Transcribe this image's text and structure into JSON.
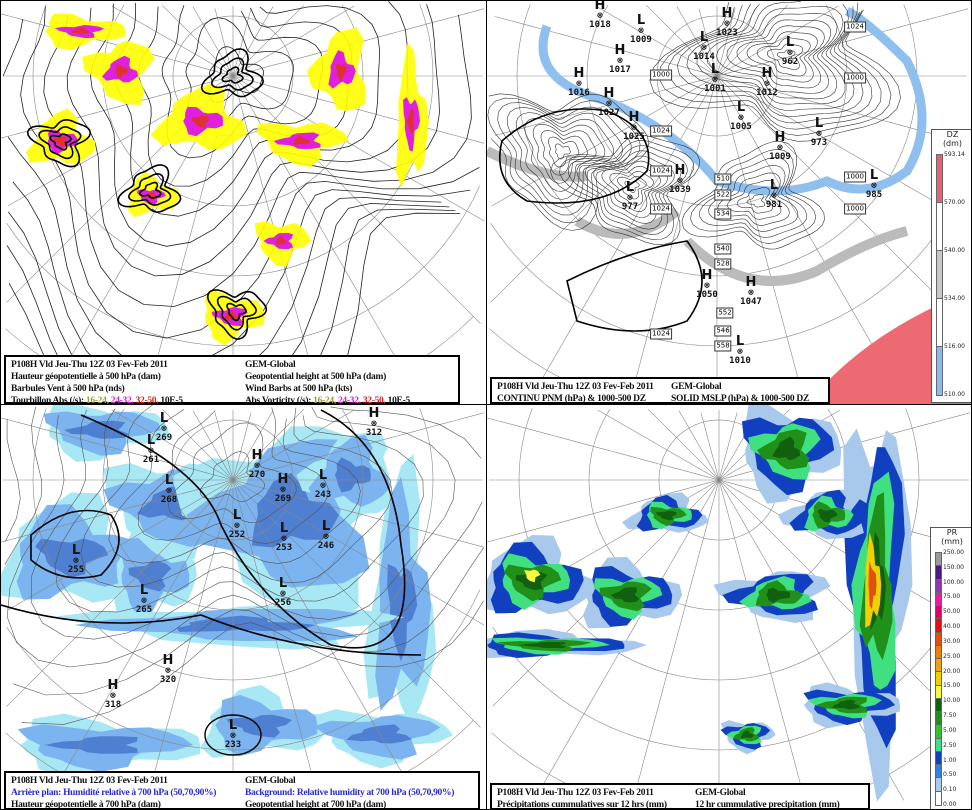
{
  "panels": {
    "vorticity_500": {
      "caption": {
        "line1_fr": "P108H Vld Jeu-Thu 12Z 03 Fev-Feb 2011",
        "line1_en": "GEM-Global",
        "line2_fr": "Hauteur géopotentielle à 500 hPa (dam)",
        "line2_en": "Geopotential height at 500 hPa (dam)",
        "line3_fr": "Barbules Vent à 500 hPa (nds)",
        "line3_en": "Wind Barbs at 500 hPa  (kts)",
        "line4_fr": "Tourbillon Abs (/s):",
        "line4_en": "Abs Vorticity (/s):",
        "ranges": [
          "16-24,",
          "24-32,",
          "32-50,"
        ],
        "unit": "10E-5"
      },
      "colors": {
        "low": "#ffff00",
        "mid": "#e020e0",
        "high": "#e03030"
      }
    },
    "mslp_thickness": {
      "caption": {
        "line1_fr": "P108H Vld Jeu-Thu 12Z 03 Fev-Feb 2011",
        "line1_en": "GEM-Global",
        "line2_fr": "CONTINU PNM  (hPa) & 1000-500 DZ",
        "line2_en": "SOLID  MSLP (hPa) & 1000-500 DZ"
      },
      "centers": [
        {
          "type": "H",
          "value": "1018"
        },
        {
          "type": "L",
          "value": "1009"
        },
        {
          "type": "H",
          "value": "1017"
        },
        {
          "type": "H",
          "value": "1016"
        },
        {
          "type": "H",
          "value": "1027"
        },
        {
          "type": "H",
          "value": "1025"
        },
        {
          "type": "H",
          "value": "1023"
        },
        {
          "type": "L",
          "value": "1014"
        },
        {
          "type": "L",
          "value": "1001"
        },
        {
          "type": "H",
          "value": "1012"
        },
        {
          "type": "L",
          "value": "1005"
        },
        {
          "type": "L",
          "value": "962"
        },
        {
          "type": "H",
          "value": "1009"
        },
        {
          "type": "L",
          "value": "973"
        },
        {
          "type": "H",
          "value": "1039"
        },
        {
          "type": "L",
          "value": "977"
        },
        {
          "type": "L",
          "value": "981"
        },
        {
          "type": "L",
          "value": "985"
        },
        {
          "type": "H",
          "value": "1050"
        },
        {
          "type": "H",
          "value": "1047"
        },
        {
          "type": "L",
          "value": "1010"
        }
      ],
      "isobar_labels": [
        "1000",
        "1024",
        "1024",
        "1024",
        "1024",
        "1024",
        "1000",
        "1000",
        "1000"
      ],
      "thickness_labels": [
        "510",
        "522",
        "534",
        "540",
        "528",
        "552",
        "546",
        "558"
      ],
      "colorbar": {
        "title": "DZ",
        "unit": "(dm)",
        "ticks": [
          "593.14",
          "570.00",
          "540.00",
          "534.00",
          "516.00",
          "510.00"
        ],
        "colors": [
          "#e86070",
          "#ffffff",
          "#c8c8c8",
          "#ffffff",
          "#88bbee"
        ]
      }
    },
    "humidity_700": {
      "caption": {
        "line1_fr": "P108H Vld Jeu-Thu 12Z 03 Fev-Feb 2011",
        "line1_en": "GEM-Global",
        "line2_fr": "Arrière plan: Humidité relative à 700 hPa (50,70,90%)",
        "line2_en": "Background: Relative humidity at 700 hPa (50,70,90%)",
        "line3_fr": "Hauteur géopotentielle à 700 hPa (dam)",
        "line3_en": "Geopotential height at 700 hPa (dam)"
      },
      "colors": {
        "rh50": "#a8e8f4",
        "rh70": "#7cb4f0",
        "rh90": "#4f7fd0"
      },
      "centers": [
        {
          "type": "L",
          "value": "269"
        },
        {
          "type": "L",
          "value": "261"
        },
        {
          "type": "L",
          "value": "268"
        },
        {
          "type": "L",
          "value": "255"
        },
        {
          "type": "L",
          "value": "265"
        },
        {
          "type": "H",
          "value": "270"
        },
        {
          "type": "H",
          "value": "269"
        },
        {
          "type": "L",
          "value": "243"
        },
        {
          "type": "L",
          "value": "252"
        },
        {
          "type": "L",
          "value": "253"
        },
        {
          "type": "L",
          "value": "246"
        },
        {
          "type": "L",
          "value": "256"
        },
        {
          "type": "H",
          "value": "320"
        },
        {
          "type": "H",
          "value": "318"
        },
        {
          "type": "L",
          "value": "233"
        },
        {
          "type": "H",
          "value": "312"
        }
      ]
    },
    "precip_12h": {
      "caption": {
        "line1_fr": "P108H Vld Jeu-Thu 12Z 03 Fev-Feb 2011",
        "line1_en": "GEM-Global",
        "line2_fr": "Précipitations cummulatives sur 12 hrs (mm)",
        "line2_en": "12 hr cummulative precipitation       (mm)"
      },
      "colorbar": {
        "title": "PR",
        "unit": "(mm)",
        "ticks": [
          "250.00",
          "150.00",
          "100.00",
          "75.00",
          "50.00",
          "40.00",
          "30.00",
          "25.00",
          "20.00",
          "15.00",
          "10.00",
          "7.50",
          "5.00",
          "2.50",
          "1.00",
          "0.50",
          "0.10",
          "0.00"
        ],
        "colors": [
          "#9a9a9a",
          "#4a1a80",
          "#8a3ab0",
          "#e020a0",
          "#e00060",
          "#e01010",
          "#e05010",
          "#e88010",
          "#f0a010",
          "#f0d000",
          "#f8f840",
          "#106010",
          "#20901a",
          "#30c030",
          "#40e080",
          "#1040c0",
          "#3080e0",
          "#a8c8ec",
          "#ffffff"
        ]
      }
    }
  }
}
